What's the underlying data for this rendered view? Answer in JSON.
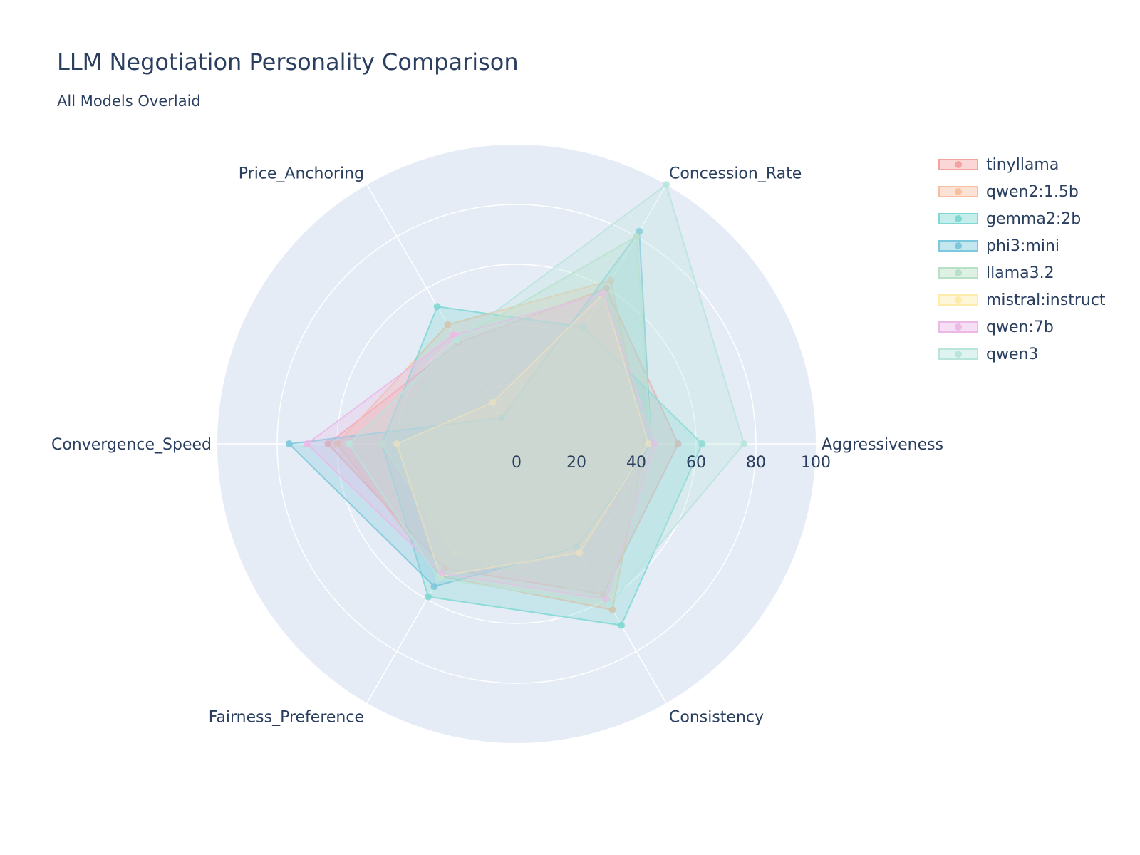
{
  "chart_data": {
    "type": "radar",
    "title": "LLM Negotiation Personality Comparison",
    "subtitle": "All Models Overlaid",
    "categories": [
      "Aggressiveness",
      "Concession_Rate",
      "Price_Anchoring",
      "Convergence_Speed",
      "Fairness_Preference",
      "Consistency"
    ],
    "radial_range": [
      0,
      100
    ],
    "radial_ticks": [
      "0",
      "20",
      "40",
      "60",
      "80",
      "100"
    ],
    "grid": true,
    "legend_position": "top-right",
    "series": [
      {
        "name": "tinyllama",
        "color": "#f4a3a3",
        "values": [
          54,
          60,
          39,
          63,
          48,
          58
        ]
      },
      {
        "name": "qwen2:1.5b",
        "color": "#f7bfa0",
        "values": [
          43,
          63,
          46,
          60,
          51,
          64
        ]
      },
      {
        "name": "gemma2:2b",
        "color": "#7fd8d3",
        "values": [
          62,
          45,
          53,
          45,
          59,
          70
        ]
      },
      {
        "name": "phi3:mini",
        "color": "#7cc8dc",
        "values": [
          45,
          82,
          10,
          76,
          55,
          40
        ]
      },
      {
        "name": "llama3.2",
        "color": "#b8e0c6",
        "values": [
          45,
          80,
          40,
          45,
          42,
          60
        ]
      },
      {
        "name": "mistral:instruct",
        "color": "#fdebaa",
        "values": [
          44,
          58,
          16,
          40,
          51,
          42
        ]
      },
      {
        "name": "qwen:7b",
        "color": "#ecb8e6",
        "values": [
          46,
          58,
          42,
          70,
          50,
          60
        ]
      },
      {
        "name": "qwen3",
        "color": "#b9e4dc",
        "values": [
          76,
          100,
          40,
          56,
          52,
          62
        ]
      }
    ]
  }
}
